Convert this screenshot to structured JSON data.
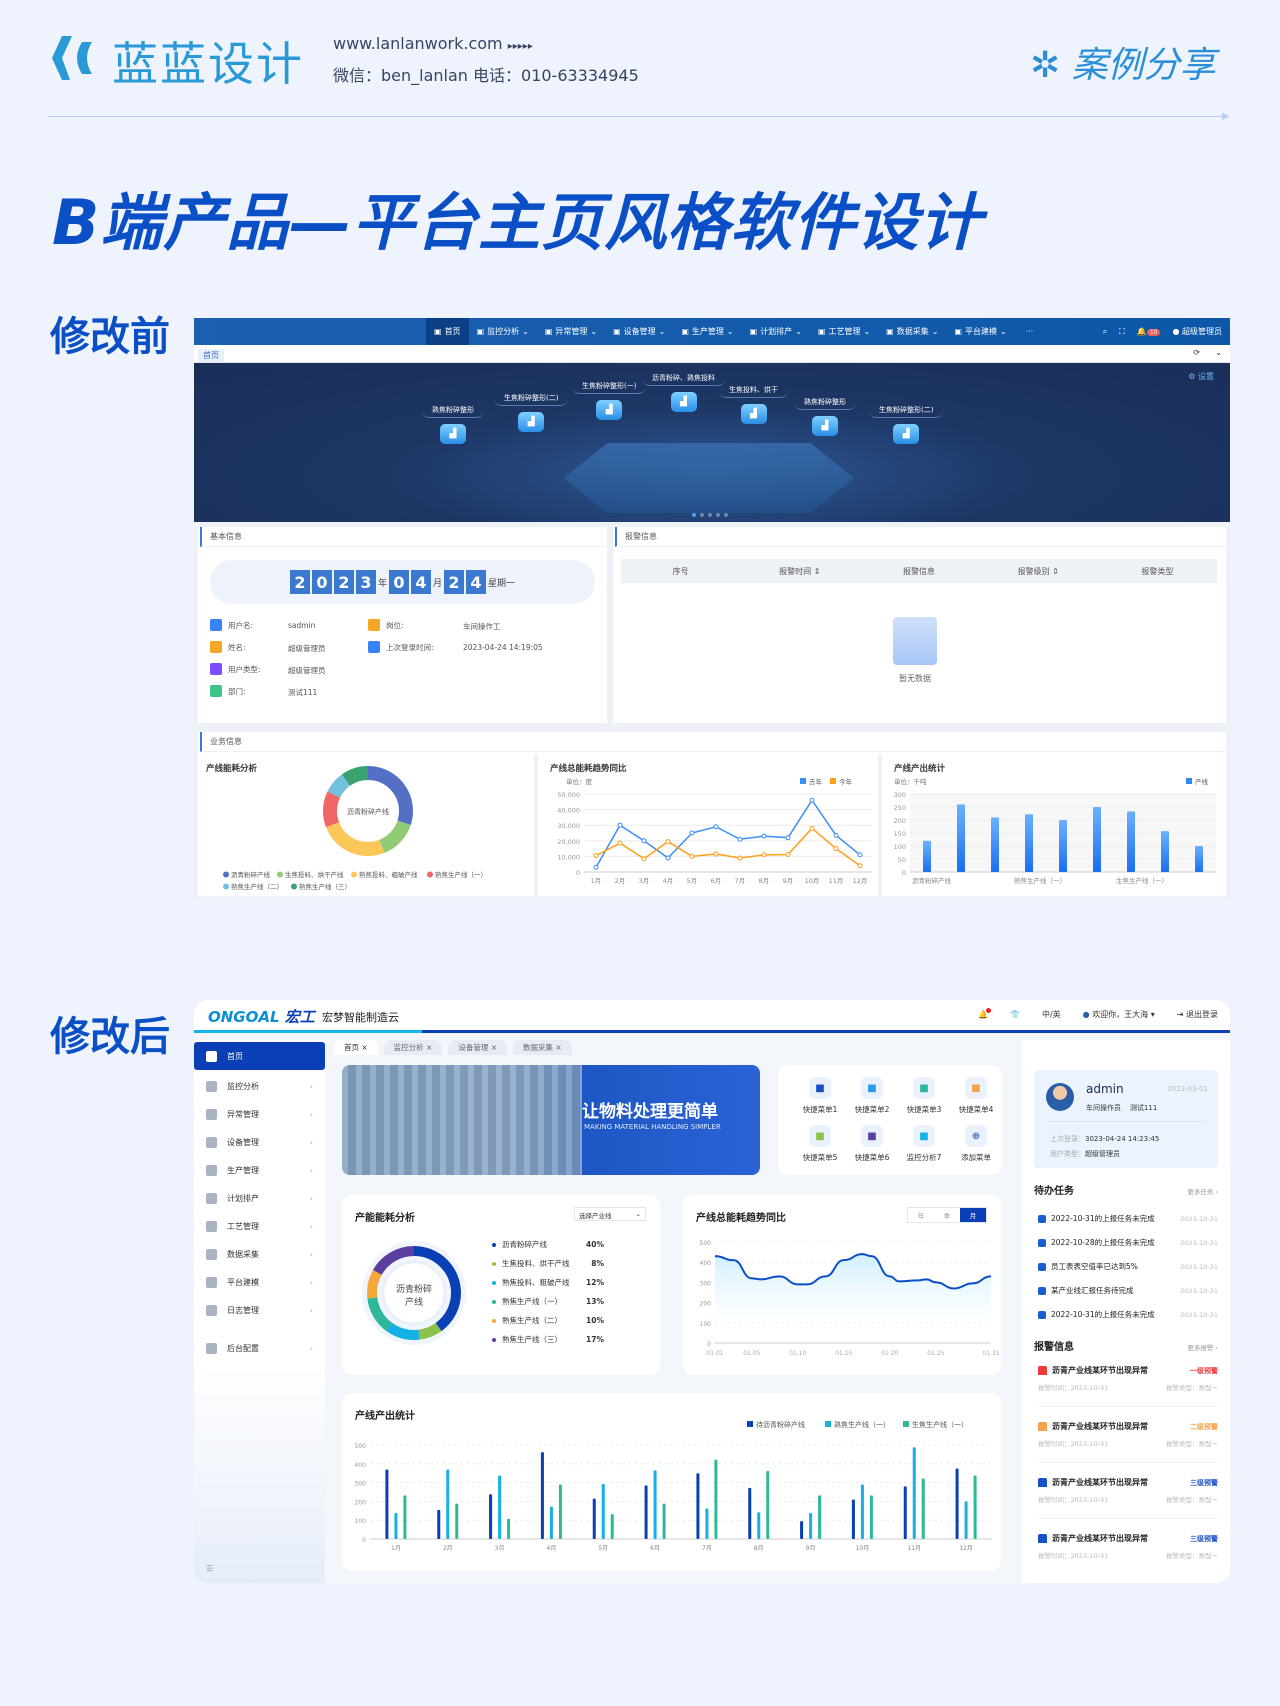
{
  "brand": {
    "name": "蓝蓝设计",
    "website": "www.lanlanwork.com",
    "arrows": "▸▸▸▸▸",
    "contact": "微信：ben_lanlan    电话：010-63334945",
    "share": "案例分享"
  },
  "page_title": "B端产品—平台主页风格软件设计",
  "labels": {
    "before": "修改前",
    "after": "修改后"
  },
  "before": {
    "nav": [
      "首页",
      "监控分析",
      "异常管理",
      "设备管理",
      "生产管理",
      "计划排产",
      "工艺管理",
      "数据采集",
      "平台建模",
      "···"
    ],
    "user": "超级管理员",
    "badge": "10",
    "tab": "首页",
    "setting": "设置",
    "banner_nodes": [
      "熟焦粉碎整形",
      "生焦粉碎整形(二)",
      "生焦粉碎整形(一)",
      "沥青粉碎、熟焦投料",
      "生焦投料、烘干",
      "熟焦粉碎整形",
      "生焦粉碎整形(二)"
    ],
    "basic": {
      "title": "基本信息",
      "digits_year": [
        "2",
        "0",
        "2",
        "3"
      ],
      "year": "年",
      "digits_month": [
        "0",
        "4"
      ],
      "month": "月",
      "digits_day": [
        "2",
        "4"
      ],
      "weekday": "星期一",
      "fields": [
        {
          "label": "用户名:",
          "value": "sadmin",
          "color": "#3b82f6"
        },
        {
          "label": "姓名:",
          "value": "超级管理员",
          "color": "#f5a623"
        },
        {
          "label": "用户类型:",
          "value": "超级管理员",
          "color": "#7c4dff"
        },
        {
          "label": "部门:",
          "value": "测试111",
          "color": "#3cc48a"
        },
        {
          "label": "岗位:",
          "value": "车间操作工",
          "color": "#f5a623"
        },
        {
          "label": "上次登录时间:",
          "value": "2023-04-24 14:19:05",
          "color": "#3b82f6"
        }
      ]
    },
    "alarm": {
      "title": "报警信息",
      "columns": [
        "序号",
        "报警时间 ⇕",
        "报警信息",
        "报警级别 ⇕",
        "报警类型"
      ],
      "empty": "暂无数据"
    },
    "business_title": "业务信息"
  },
  "after": {
    "logo": "ONGOAL",
    "logo_cn": "宏工",
    "app": "宏梦智能制造云",
    "header": {
      "lang": "中/英",
      "welcome": "欢迎你，王大海 ▾",
      "logout": "退出登录"
    },
    "sidebar": [
      "首页",
      "监控分析",
      "异常管理",
      "设备管理",
      "生产管理",
      "计划排产",
      "工艺管理",
      "数据采集",
      "平台建模",
      "日志管理",
      "后台配置"
    ],
    "tabs": [
      "首页 ×",
      "监控分析 ×",
      "设备管理 ×",
      "数据采集 ×"
    ],
    "banner": {
      "headline": "让物料处理更简单",
      "sub": "MAKING MATERIAL HANDLING SIMPLER"
    },
    "quick_menu": [
      {
        "label": "快捷菜单1",
        "color": "#1a4fc4"
      },
      {
        "label": "快捷菜单2",
        "color": "#2a9ae8"
      },
      {
        "label": "快捷菜单3",
        "color": "#2db89a"
      },
      {
        "label": "快捷菜单4",
        "color": "#f5a04a"
      },
      {
        "label": "快捷菜单5",
        "color": "#8bc34a"
      },
      {
        "label": "快捷菜单6",
        "color": "#5b3fa0"
      },
      {
        "label": "监控分析7",
        "color": "#14b0e6"
      },
      {
        "label": "添加菜单",
        "color": "#0b3fb5"
      }
    ],
    "user": {
      "name": "admin",
      "date": "2023-03-01",
      "role": "车间操作员",
      "dept": "测试111",
      "last_login_label": "上次登录：",
      "last_login": "3023-04-24   14:23:45",
      "type_label": "用户类型：",
      "type": "超级管理员"
    },
    "todo": {
      "title": "待办任务",
      "more": "更多任务 ›",
      "items": [
        {
          "text": "2022-10-31的上报任务未完成",
          "date": "2023-10-31"
        },
        {
          "text": "2022-10-28的上报任务未完成",
          "date": "2023-10-31"
        },
        {
          "text": "员工表表空值率已达到5%",
          "date": "2023-10-31"
        },
        {
          "text": "某产业线汇报任务待完成",
          "date": "2023-10-31"
        },
        {
          "text": "2022-10-31的上报任务未完成",
          "date": "2023-10-31"
        }
      ]
    },
    "alarms": {
      "title": "报警信息",
      "more": "更多报警 ›",
      "items": [
        {
          "text": "沥青产业线某环节出现异常",
          "level": "一级预警",
          "color": "#f03a3a",
          "time": "报警时间：2023-10-31",
          "type": "报警类型：类型一"
        },
        {
          "text": "沥青产业线某环节出现异常",
          "level": "二级预警",
          "color": "#f5a04a",
          "time": "报警时间：2023-10-31",
          "type": "报警类型：类型一"
        },
        {
          "text": "沥青产业线某环节出现异常",
          "level": "三级预警",
          "color": "#1a4fc4",
          "time": "报警时间：2023-10-31",
          "type": "报警类型：类型一"
        },
        {
          "text": "沥青产业线某环节出现异常",
          "level": "三级预警",
          "color": "#1a4fc4",
          "time": "报警时间：2023-10-31",
          "type": "报警类型：类型一"
        }
      ]
    },
    "select_placeholder": "选择产业线",
    "period": [
      "年",
      "季",
      "月"
    ]
  },
  "chart_data": [
    {
      "id": "before_donut",
      "type": "pie",
      "title": "产线能耗分析",
      "center": "沥青粉碎产线",
      "categories": [
        "沥青粉碎产线",
        "生焦投料、烘干产线",
        "熟焦投料、粗破产线",
        "熟焦生产线（一）",
        "熟焦生产线（二）",
        "熟焦生产线（三）"
      ],
      "values": [
        30,
        14,
        25,
        13,
        8,
        10
      ],
      "colors": [
        "#5470c6",
        "#91cc75",
        "#fac858",
        "#ee6666",
        "#73c0de",
        "#3ba272"
      ]
    },
    {
      "id": "before_line",
      "type": "line",
      "title": "产线总能耗趋势同比",
      "unit": "单位：度",
      "ylim": [
        0,
        50000
      ],
      "yticks": [
        "0",
        "10,000",
        "20,000",
        "30,000",
        "40,000",
        "50,000"
      ],
      "categories": [
        "1月",
        "2月",
        "3月",
        "4月",
        "5月",
        "6月",
        "7月",
        "8月",
        "9月",
        "10月",
        "11月",
        "12月"
      ],
      "series": [
        {
          "name": "去年",
          "color": "#3d8ff5",
          "values": [
            3000,
            30000,
            20000,
            9000,
            25000,
            29000,
            21000,
            23000,
            22000,
            46000,
            23500,
            11000
          ]
        },
        {
          "name": "今年",
          "color": "#ff9f1a",
          "values": [
            10500,
            18500,
            8500,
            19500,
            10000,
            11500,
            9000,
            11000,
            11200,
            28000,
            15000,
            4000
          ]
        }
      ]
    },
    {
      "id": "before_bar",
      "type": "bar",
      "title": "产线产出统计",
      "unit": "单位：千吨",
      "ylim": [
        0,
        300
      ],
      "yticks": [
        "0",
        "50",
        "100",
        "150",
        "200",
        "250",
        "300"
      ],
      "categories": [
        "沥青粉碎产线",
        "",
        "",
        "熟焦生产线（一）",
        "",
        "",
        "生焦生产线（一）",
        "",
        ""
      ],
      "series": [
        {
          "name": "产线",
          "color": "#2f86f6",
          "values": [
            120,
            260,
            210,
            222,
            200,
            250,
            233,
            157,
            100
          ]
        }
      ]
    },
    {
      "id": "after_donut",
      "type": "pie",
      "title": "产能能耗分析",
      "center": "沥青粉碎产线",
      "categories": [
        "沥青粉碎产线",
        "生焦投料、烘干产线",
        "熟焦投料、粗破产线",
        "熟焦生产线（一）",
        "熟焦生产线（二）",
        "熟焦生产线（三）"
      ],
      "values": [
        40,
        8,
        12,
        13,
        10,
        17
      ],
      "labels": [
        "40%",
        "8%",
        "12%",
        "13%",
        "10%",
        "17%"
      ],
      "colors": [
        "#0b3fb5",
        "#8bc34a",
        "#14b0e6",
        "#2db89a",
        "#f5a83a",
        "#5b3fa0"
      ]
    },
    {
      "id": "after_line",
      "type": "area",
      "title": "产线总能耗趋势同比",
      "ylim": [
        0,
        500
      ],
      "yticks": [
        "0",
        "100",
        "200",
        "300",
        "400",
        "500"
      ],
      "xticks": [
        "01.01",
        "01.05",
        "01.10",
        "01.15",
        "01.20",
        "01.25",
        "01.31"
      ],
      "x": [
        1,
        3,
        5,
        6,
        8,
        10,
        11,
        13,
        15,
        17,
        18,
        20,
        21,
        23,
        24,
        25,
        27,
        29,
        31
      ],
      "values": [
        430,
        410,
        320,
        315,
        330,
        290,
        290,
        330,
        410,
        440,
        430,
        330,
        305,
        310,
        315,
        300,
        270,
        295,
        330
      ],
      "color": "#0b4fc6"
    },
    {
      "id": "after_bar",
      "type": "bar",
      "title": "产线产出统计",
      "ylim": [
        0,
        500
      ],
      "yticks": [
        "0",
        "100",
        "200",
        "300",
        "400",
        "500"
      ],
      "categories": [
        "1月",
        "2月",
        "3月",
        "4月",
        "5月",
        "6月",
        "7月",
        "8月",
        "9月",
        "10月",
        "11月",
        "12月"
      ],
      "series": [
        {
          "name": "待沥青粉碎产线",
          "color": "#0b3fb5",
          "values": [
            370,
            155,
            238,
            462,
            215,
            285,
            350,
            272,
            95,
            210,
            280,
            375
          ]
        },
        {
          "name": "熟焦生产线（一）",
          "color": "#14b0e6",
          "values": [
            138,
            370,
            338,
            172,
            293,
            365,
            162,
            142,
            138,
            290,
            488,
            200
          ]
        },
        {
          "name": "生焦生产线（一）",
          "color": "#2db89a",
          "values": [
            232,
            188,
            108,
            290,
            132,
            188,
            422,
            362,
            232,
            232,
            322,
            338
          ]
        }
      ]
    }
  ]
}
